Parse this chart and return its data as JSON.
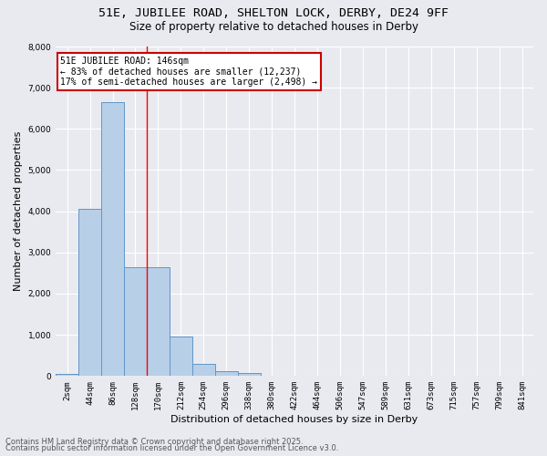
{
  "title1": "51E, JUBILEE ROAD, SHELTON LOCK, DERBY, DE24 9FF",
  "title2": "Size of property relative to detached houses in Derby",
  "xlabel": "Distribution of detached houses by size in Derby",
  "ylabel": "Number of detached properties",
  "categories": [
    "2sqm",
    "44sqm",
    "86sqm",
    "128sqm",
    "170sqm",
    "212sqm",
    "254sqm",
    "296sqm",
    "338sqm",
    "380sqm",
    "422sqm",
    "464sqm",
    "506sqm",
    "547sqm",
    "589sqm",
    "631sqm",
    "673sqm",
    "715sqm",
    "757sqm",
    "799sqm",
    "841sqm"
  ],
  "bar_values": [
    50,
    4050,
    6650,
    2650,
    2650,
    970,
    305,
    120,
    65,
    0,
    0,
    0,
    0,
    0,
    0,
    0,
    0,
    0,
    0,
    0,
    0
  ],
  "bar_color": "#b8cfe8",
  "bar_edge_color": "#6096c8",
  "background_color": "#e8eaf0",
  "grid_color": "#ffffff",
  "red_line_x": 3.5,
  "annotation_title": "51E JUBILEE ROAD: 146sqm",
  "annotation_line1": "← 83% of detached houses are smaller (12,237)",
  "annotation_line2": "17% of semi-detached houses are larger (2,498) →",
  "annotation_box_color": "#ffffff",
  "annotation_border_color": "#cc0000",
  "ylim": [
    0,
    8000
  ],
  "yticks": [
    0,
    1000,
    2000,
    3000,
    4000,
    5000,
    6000,
    7000,
    8000
  ],
  "footer_line1": "Contains HM Land Registry data © Crown copyright and database right 2025.",
  "footer_line2": "Contains public sector information licensed under the Open Government Licence v3.0.",
  "title_fontsize": 9.5,
  "subtitle_fontsize": 8.5,
  "axis_label_fontsize": 8,
  "tick_fontsize": 6.5,
  "annotation_fontsize": 7,
  "footer_fontsize": 6
}
